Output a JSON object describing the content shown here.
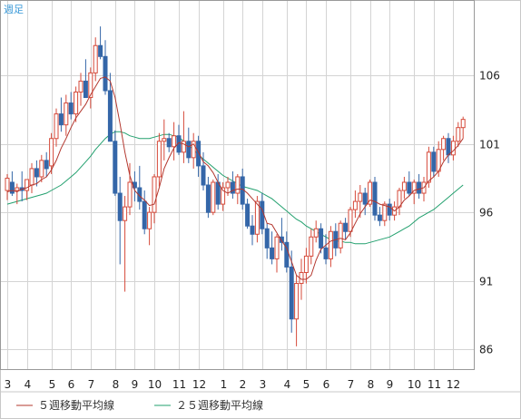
{
  "chart_data": {
    "type": "candlestick",
    "period_label": "週足",
    "ylim": [
      84.5,
      111.5
    ],
    "y_ticks": [
      86,
      91,
      96,
      101,
      106
    ],
    "x_ticks": [
      {
        "label": "3",
        "week": 0
      },
      {
        "label": "4",
        "week": 4
      },
      {
        "label": "5",
        "week": 9
      },
      {
        "label": "6",
        "week": 13
      },
      {
        "label": "7",
        "week": 17
      },
      {
        "label": "8",
        "week": 22
      },
      {
        "label": "9",
        "week": 26
      },
      {
        "label": "10",
        "week": 30
      },
      {
        "label": "11",
        "week": 35
      },
      {
        "label": "12",
        "week": 39
      },
      {
        "label": "1",
        "week": 44
      },
      {
        "label": "2",
        "week": 48
      },
      {
        "label": "3",
        "week": 52
      },
      {
        "label": "4",
        "week": 57
      },
      {
        "label": "5",
        "week": 61
      },
      {
        "label": "6",
        "week": 65
      },
      {
        "label": "7",
        "week": 70
      },
      {
        "label": "8",
        "week": 74
      },
      {
        "label": "9",
        "week": 78
      },
      {
        "label": "10",
        "week": 83
      },
      {
        "label": "11",
        "week": 87
      },
      {
        "label": "12",
        "week": 91
      }
    ],
    "candles": [
      [
        97.6,
        98.8,
        96.9,
        98.5
      ],
      [
        98.2,
        99.0,
        97.2,
        97.4
      ],
      [
        97.6,
        98.1,
        96.6,
        97.8
      ],
      [
        97.8,
        99.0,
        96.8,
        97.6
      ],
      [
        97.6,
        98.2,
        96.9,
        98.4
      ],
      [
        98.0,
        99.6,
        97.4,
        99.2
      ],
      [
        99.2,
        99.8,
        97.9,
        98.6
      ],
      [
        98.6,
        100.2,
        98.2,
        99.8
      ],
      [
        99.8,
        100.4,
        98.6,
        99.2
      ],
      [
        99.4,
        101.8,
        98.8,
        101.4
      ],
      [
        101.4,
        103.6,
        100.8,
        103.2
      ],
      [
        103.2,
        104.4,
        101.9,
        102.4
      ],
      [
        102.4,
        104.6,
        101.6,
        104.0
      ],
      [
        104.0,
        104.8,
        102.8,
        103.2
      ],
      [
        103.2,
        105.2,
        102.6,
        104.8
      ],
      [
        104.8,
        106.2,
        103.8,
        105.6
      ],
      [
        105.6,
        107.2,
        104.6,
        104.4
      ],
      [
        104.4,
        106.6,
        103.6,
        106.2
      ],
      [
        106.2,
        108.8,
        105.6,
        108.2
      ],
      [
        108.2,
        109.6,
        107.2,
        107.4
      ],
      [
        107.4,
        108.6,
        104.6,
        104.9
      ],
      [
        104.9,
        106.2,
        101.4,
        101.2
      ],
      [
        101.2,
        102.0,
        97.2,
        97.4
      ],
      [
        97.4,
        98.6,
        92.2,
        95.4
      ],
      [
        95.4,
        97.2,
        90.2,
        96.4
      ],
      [
        96.4,
        99.6,
        95.8,
        98.2
      ],
      [
        98.2,
        99.0,
        96.8,
        97.8
      ],
      [
        97.8,
        99.4,
        96.2,
        96.8
      ],
      [
        96.8,
        97.6,
        94.4,
        94.8
      ],
      [
        94.8,
        96.4,
        93.6,
        96.0
      ],
      [
        96.0,
        98.8,
        95.2,
        98.6
      ],
      [
        98.6,
        101.8,
        97.9,
        101.2
      ],
      [
        101.2,
        102.8,
        99.8,
        101.4
      ],
      [
        101.4,
        101.8,
        100.4,
        100.8
      ],
      [
        100.8,
        102.6,
        99.8,
        101.6
      ],
      [
        101.6,
        102.4,
        100.2,
        100.4
      ],
      [
        100.4,
        103.4,
        99.6,
        101.2
      ],
      [
        101.2,
        102.2,
        99.6,
        100.0
      ],
      [
        100.0,
        101.8,
        99.2,
        101.2
      ],
      [
        101.2,
        101.6,
        98.6,
        99.4
      ],
      [
        99.4,
        100.4,
        97.6,
        98.0
      ],
      [
        98.0,
        98.6,
        95.6,
        96.0
      ],
      [
        96.0,
        98.4,
        95.8,
        98.2
      ],
      [
        98.2,
        98.8,
        96.2,
        96.6
      ],
      [
        96.6,
        98.2,
        96.1,
        97.8
      ],
      [
        97.8,
        98.6,
        97.2,
        98.2
      ],
      [
        98.2,
        99.0,
        97.0,
        97.4
      ],
      [
        97.4,
        98.8,
        96.6,
        98.6
      ],
      [
        98.6,
        99.2,
        96.2,
        96.6
      ],
      [
        96.6,
        97.0,
        94.8,
        95.0
      ],
      [
        95.0,
        95.8,
        93.6,
        94.4
      ],
      [
        94.4,
        97.2,
        93.8,
        96.8
      ],
      [
        96.8,
        97.4,
        94.4,
        94.8
      ],
      [
        94.8,
        95.2,
        92.6,
        93.4
      ],
      [
        93.4,
        94.6,
        92.2,
        92.6
      ],
      [
        92.6,
        94.4,
        91.6,
        94.2
      ],
      [
        94.2,
        95.6,
        93.2,
        93.8
      ],
      [
        93.8,
        94.6,
        91.6,
        92.0
      ],
      [
        92.0,
        93.2,
        87.2,
        88.2
      ],
      [
        88.2,
        91.4,
        86.2,
        90.8
      ],
      [
        90.8,
        92.6,
        89.6,
        91.6
      ],
      [
        91.6,
        93.4,
        90.8,
        92.8
      ],
      [
        92.8,
        94.8,
        92.2,
        94.2
      ],
      [
        94.2,
        95.4,
        93.8,
        94.8
      ],
      [
        94.8,
        95.2,
        93.0,
        93.4
      ],
      [
        93.4,
        94.4,
        92.2,
        92.6
      ],
      [
        92.6,
        95.0,
        92.0,
        94.6
      ],
      [
        94.6,
        95.2,
        92.8,
        93.4
      ],
      [
        93.4,
        95.4,
        93.0,
        95.2
      ],
      [
        95.2,
        95.6,
        94.0,
        94.6
      ],
      [
        94.6,
        96.4,
        94.2,
        96.2
      ],
      [
        96.2,
        97.6,
        95.6,
        96.8
      ],
      [
        96.8,
        98.0,
        95.6,
        97.4
      ],
      [
        97.4,
        97.8,
        95.8,
        96.6
      ],
      [
        96.6,
        98.4,
        96.4,
        98.2
      ],
      [
        98.2,
        98.6,
        95.4,
        95.8
      ],
      [
        95.8,
        96.4,
        95.0,
        95.4
      ],
      [
        95.4,
        96.8,
        95.0,
        96.6
      ],
      [
        96.6,
        97.0,
        95.4,
        95.8
      ],
      [
        95.8,
        96.8,
        95.4,
        96.4
      ],
      [
        96.4,
        97.8,
        95.8,
        97.6
      ],
      [
        97.6,
        98.6,
        97.0,
        98.2
      ],
      [
        98.2,
        99.0,
        97.2,
        97.4
      ],
      [
        97.4,
        98.4,
        96.6,
        98.2
      ],
      [
        98.2,
        98.8,
        97.0,
        97.4
      ],
      [
        97.4,
        98.6,
        96.8,
        98.2
      ],
      [
        98.2,
        100.8,
        97.8,
        100.4
      ],
      [
        100.4,
        100.8,
        98.6,
        99.0
      ],
      [
        99.0,
        101.2,
        98.6,
        100.6
      ],
      [
        100.6,
        101.6,
        99.8,
        101.4
      ],
      [
        101.4,
        101.8,
        99.6,
        100.2
      ],
      [
        100.2,
        101.6,
        99.8,
        101.2
      ],
      [
        101.2,
        102.6,
        100.8,
        102.2
      ],
      [
        102.2,
        103.0,
        101.4,
        102.8
      ]
    ],
    "series": [
      {
        "name": "５週移動平均線",
        "values": [
          97.5,
          97.6,
          97.5,
          97.7,
          97.8,
          98.0,
          98.1,
          98.4,
          98.6,
          99.1,
          99.8,
          100.7,
          101.4,
          102.2,
          102.9,
          103.4,
          103.9,
          104.6,
          105.2,
          105.8,
          105.9,
          105.6,
          104.4,
          102.5,
          100.4,
          98.7,
          97.6,
          97.2,
          96.9,
          96.5,
          96.6,
          97.8,
          99.2,
          100.0,
          100.7,
          101.1,
          101.0,
          100.8,
          101.0,
          100.4,
          99.7,
          99.4,
          98.9,
          98.2,
          97.6,
          97.4,
          97.6,
          97.7,
          97.7,
          97.4,
          97.0,
          96.6,
          96.2,
          95.2,
          95.1,
          94.5,
          93.9,
          93.4,
          92.4,
          91.4,
          91.1,
          91.1,
          91.4,
          92.5,
          93.3,
          93.6,
          93.9,
          94.0,
          94.1,
          94.0,
          94.5,
          95.2,
          95.9,
          96.4,
          96.9,
          96.8,
          96.6,
          96.5,
          96.4,
          96.1,
          96.4,
          96.9,
          97.2,
          97.6,
          97.7,
          97.8,
          98.3,
          98.6,
          99.0,
          99.7,
          100.2,
          100.5,
          100.9,
          101.4
        ]
      },
      {
        "name": "２５週移動平均線",
        "values": [
          96.6,
          96.7,
          96.8,
          96.9,
          97.0,
          97.1,
          97.2,
          97.3,
          97.4,
          97.6,
          97.8,
          98.0,
          98.3,
          98.6,
          98.9,
          99.3,
          99.7,
          100.1,
          100.6,
          101.0,
          101.4,
          101.7,
          101.9,
          101.9,
          101.8,
          101.6,
          101.5,
          101.4,
          101.4,
          101.4,
          101.5,
          101.6,
          101.7,
          101.7,
          101.6,
          101.5,
          101.2,
          100.9,
          100.6,
          100.2,
          99.9,
          99.6,
          99.3,
          99.0,
          98.7,
          98.5,
          98.3,
          98.1,
          97.9,
          97.8,
          97.7,
          97.6,
          97.4,
          97.2,
          97.0,
          96.7,
          96.4,
          96.1,
          95.8,
          95.5,
          95.3,
          95.0,
          94.8,
          94.6,
          94.4,
          94.2,
          94.0,
          93.9,
          93.9,
          93.8,
          93.8,
          93.7,
          93.7,
          93.7,
          93.8,
          93.9,
          94.0,
          94.1,
          94.2,
          94.4,
          94.6,
          94.8,
          95.0,
          95.3,
          95.6,
          95.8,
          96.0,
          96.2,
          96.5,
          96.8,
          97.1,
          97.4,
          97.7,
          98.0
        ]
      }
    ],
    "colors": {
      "up": "#d64a3a",
      "down": "#3466a8",
      "ma5": "#b3372e",
      "ma25": "#22a06e",
      "grid": "#d4d4d4",
      "frame": "#999999"
    }
  },
  "legend": {
    "ma5_label": "５週移動平均線",
    "ma25_label": "２５週移動平均線"
  }
}
